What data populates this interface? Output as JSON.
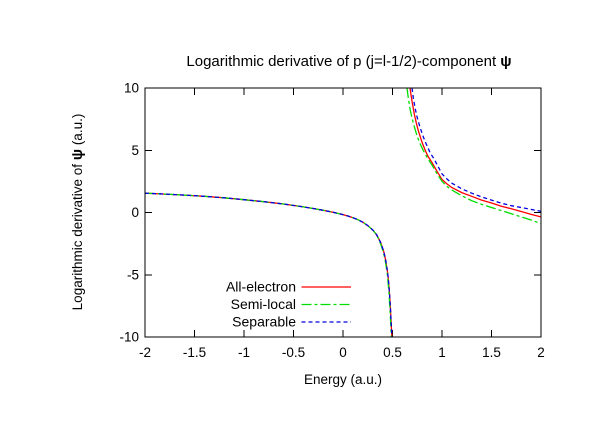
{
  "chart_data": {
    "type": "line",
    "title": {
      "main": "Logarithmic derivative of p (j=l-1/2)-component ",
      "symbol": "ψ"
    },
    "xlabel": "Energy (a.u.)",
    "ylabel": {
      "pre": "Logarithmic derivative of ",
      "symbol": "ψ",
      "post": " (a.u.)"
    },
    "xlim": [
      -2,
      2
    ],
    "ylim": [
      -10,
      10
    ],
    "xtick_labels": [
      "-2",
      "-1.5",
      "-1",
      "-0.5",
      "0",
      "0.5",
      "1",
      "1.5",
      "2"
    ],
    "ytick_labels": [
      "-10",
      "-5",
      "0",
      "5",
      "10"
    ],
    "grid": false,
    "axis_color": "#000000",
    "legend": {
      "position": "inside-bottom-center",
      "entries_from_series": true
    },
    "shared_segments": {
      "left_branch": [
        [
          -2.0,
          1.55
        ],
        [
          -1.8,
          1.48
        ],
        [
          -1.6,
          1.4
        ],
        [
          -1.4,
          1.3
        ],
        [
          -1.2,
          1.18
        ],
        [
          -1.0,
          1.03
        ],
        [
          -0.8,
          0.87
        ],
        [
          -0.6,
          0.68
        ],
        [
          -0.4,
          0.45
        ],
        [
          -0.3,
          0.32
        ],
        [
          -0.2,
          0.18
        ],
        [
          -0.1,
          0.02
        ],
        [
          0.0,
          -0.17
        ],
        [
          0.05,
          -0.28
        ],
        [
          0.1,
          -0.42
        ],
        [
          0.15,
          -0.58
        ],
        [
          0.2,
          -0.78
        ],
        [
          0.25,
          -1.05
        ],
        [
          0.3,
          -1.4
        ],
        [
          0.34,
          -1.8
        ],
        [
          0.38,
          -2.4
        ],
        [
          0.41,
          -3.1
        ],
        [
          0.43,
          -3.8
        ],
        [
          0.45,
          -4.8
        ],
        [
          0.46,
          -5.5
        ],
        [
          0.47,
          -6.5
        ],
        [
          0.48,
          -7.8
        ],
        [
          0.485,
          -8.6
        ],
        [
          0.49,
          -9.4
        ],
        [
          0.493,
          -10.0
        ]
      ],
      "left_branch_green": [
        [
          -2.0,
          1.55
        ],
        [
          -1.8,
          1.48
        ],
        [
          -1.6,
          1.4
        ],
        [
          -1.4,
          1.3
        ],
        [
          -1.2,
          1.18
        ],
        [
          -1.0,
          1.03
        ],
        [
          -0.8,
          0.87
        ],
        [
          -0.6,
          0.68
        ],
        [
          -0.4,
          0.45
        ],
        [
          -0.3,
          0.32
        ],
        [
          -0.2,
          0.18
        ],
        [
          -0.1,
          0.02
        ],
        [
          0.0,
          -0.17
        ],
        [
          0.05,
          -0.28
        ],
        [
          0.1,
          -0.42
        ],
        [
          0.15,
          -0.58
        ],
        [
          0.2,
          -0.78
        ],
        [
          0.25,
          -1.05
        ],
        [
          0.3,
          -1.4
        ],
        [
          0.34,
          -1.8
        ],
        [
          0.375,
          -2.4
        ],
        [
          0.405,
          -3.1
        ],
        [
          0.425,
          -3.8
        ],
        [
          0.445,
          -4.8
        ],
        [
          0.455,
          -5.5
        ],
        [
          0.465,
          -6.5
        ],
        [
          0.475,
          -7.8
        ],
        [
          0.48,
          -8.6
        ],
        [
          0.485,
          -9.4
        ],
        [
          0.488,
          -10.0
        ]
      ]
    },
    "series": [
      {
        "name": "All-electron",
        "color": "#ff0000",
        "dash": "solid",
        "segments": [
          "left_branch",
          [
            [
              0.677,
              10.0
            ],
            [
              0.69,
              9.3
            ],
            [
              0.7,
              8.8
            ],
            [
              0.72,
              7.9
            ],
            [
              0.74,
              7.2
            ],
            [
              0.76,
              6.6
            ],
            [
              0.78,
              6.1
            ],
            [
              0.8,
              5.6
            ],
            [
              0.83,
              5.0
            ],
            [
              0.86,
              4.5
            ],
            [
              0.9,
              4.0
            ],
            [
              0.95,
              3.3
            ],
            [
              1.0,
              2.65
            ],
            [
              1.05,
              2.3
            ],
            [
              1.1,
              2.0
            ],
            [
              1.2,
              1.6
            ],
            [
              1.3,
              1.3
            ],
            [
              1.4,
              1.0
            ],
            [
              1.5,
              0.76
            ],
            [
              1.6,
              0.5
            ],
            [
              1.7,
              0.3
            ],
            [
              1.8,
              0.08
            ],
            [
              1.9,
              -0.15
            ],
            [
              2.0,
              -0.35
            ]
          ]
        ]
      },
      {
        "name": "Semi-local",
        "color": "#00dd00",
        "dash": "10,3,3,3",
        "segments": [
          "left_branch_green",
          [
            [
              0.646,
              10.0
            ],
            [
              0.66,
              9.2
            ],
            [
              0.68,
              8.2
            ],
            [
              0.7,
              7.5
            ],
            [
              0.72,
              6.9
            ],
            [
              0.75,
              6.1
            ],
            [
              0.78,
              5.5
            ],
            [
              0.81,
              5.0
            ],
            [
              0.85,
              4.4
            ],
            [
              0.9,
              3.8
            ],
            [
              0.95,
              3.1
            ],
            [
              1.0,
              2.5
            ],
            [
              1.05,
              2.1
            ],
            [
              1.1,
              1.8
            ],
            [
              1.2,
              1.35
            ],
            [
              1.3,
              0.95
            ],
            [
              1.4,
              0.65
            ],
            [
              1.5,
              0.4
            ],
            [
              1.6,
              0.15
            ],
            [
              1.7,
              -0.1
            ],
            [
              1.8,
              -0.35
            ],
            [
              1.9,
              -0.6
            ],
            [
              2.0,
              -0.9
            ]
          ]
        ]
      },
      {
        "name": "Separable",
        "color": "#0000e0",
        "dash": "4,3",
        "segments": [
          "left_branch",
          [
            [
              0.697,
              10.0
            ],
            [
              0.71,
              9.2
            ],
            [
              0.73,
              8.3
            ],
            [
              0.75,
              7.6
            ],
            [
              0.78,
              6.8
            ],
            [
              0.81,
              6.1
            ],
            [
              0.84,
              5.5
            ],
            [
              0.88,
              4.8
            ],
            [
              0.92,
              4.3
            ],
            [
              0.96,
              3.7
            ],
            [
              1.0,
              3.1
            ],
            [
              1.05,
              2.7
            ],
            [
              1.1,
              2.35
            ],
            [
              1.2,
              1.9
            ],
            [
              1.3,
              1.55
            ],
            [
              1.4,
              1.25
            ],
            [
              1.5,
              1.0
            ],
            [
              1.6,
              0.75
            ],
            [
              1.7,
              0.55
            ],
            [
              1.8,
              0.4
            ],
            [
              1.9,
              0.25
            ],
            [
              2.0,
              0.1
            ]
          ]
        ]
      }
    ]
  }
}
